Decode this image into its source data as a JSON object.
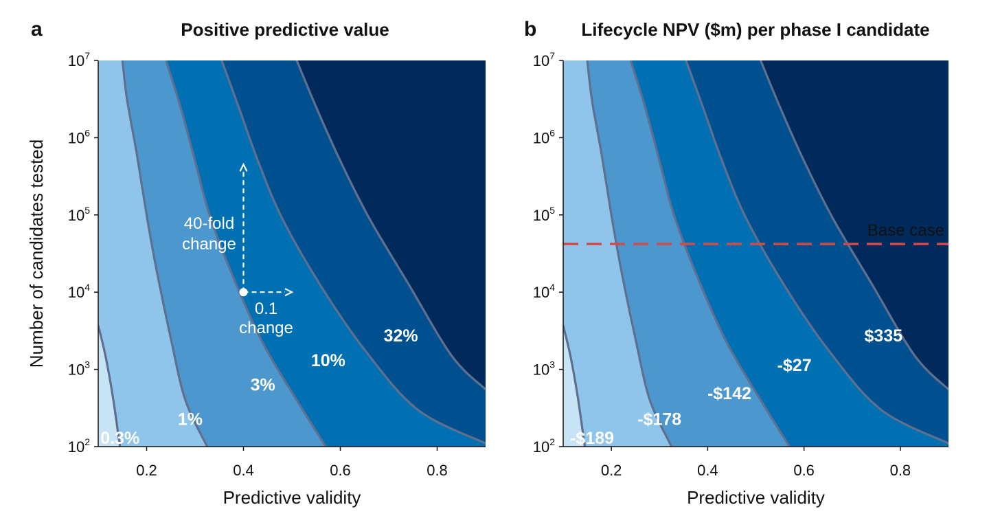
{
  "chart_data": [
    {
      "type": "contour",
      "panel": "a",
      "title": "Positive predictive value",
      "xlabel": "Predictive validity",
      "ylabel": "Number of candidates tested",
      "xlim": [
        0.1,
        0.9
      ],
      "ylim": [
        100,
        10000000
      ],
      "yscale": "log",
      "xticks": [
        {
          "value": 0.2,
          "label": "0.2"
        },
        {
          "value": 0.4,
          "label": "0.4"
        },
        {
          "value": 0.6,
          "label": "0.6"
        },
        {
          "value": 0.8,
          "label": "0.8"
        }
      ],
      "yticks": [
        {
          "value": 100,
          "base": "10",
          "exp": "2"
        },
        {
          "value": 1000,
          "base": "10",
          "exp": "3"
        },
        {
          "value": 10000,
          "base": "10",
          "exp": "4"
        },
        {
          "value": 100000,
          "base": "10",
          "exp": "5"
        },
        {
          "value": 1000000,
          "base": "10",
          "exp": "6"
        },
        {
          "value": 10000000,
          "base": "10",
          "exp": "7"
        }
      ],
      "colors": [
        "#c7e4f6",
        "#8fc5ea",
        "#4d97cf",
        "#0070b2",
        "#00508f",
        "#002a5c"
      ],
      "line_color": "#5f6f8f",
      "contours": [
        {
          "points": [
            [
              0.1,
              3700
            ],
            [
              0.115,
              1500
            ],
            [
              0.13,
              450
            ],
            [
              0.145,
              100
            ]
          ]
        },
        {
          "points": [
            [
              0.15,
              10000000
            ],
            [
              0.16,
              3000000
            ],
            [
              0.18,
              600000
            ],
            [
              0.2,
              100000
            ],
            [
              0.22,
              20000
            ],
            [
              0.25,
              2500
            ],
            [
              0.28,
              400
            ],
            [
              0.325,
              100
            ]
          ]
        },
        {
          "points": [
            [
              0.24,
              10000000
            ],
            [
              0.27,
              2500000
            ],
            [
              0.3,
              500000
            ],
            [
              0.33,
              100000
            ],
            [
              0.38,
              15000
            ],
            [
              0.44,
              2200
            ],
            [
              0.51,
              400
            ],
            [
              0.57,
              100
            ]
          ]
        },
        {
          "points": [
            [
              0.355,
              10000000
            ],
            [
              0.39,
              2500000
            ],
            [
              0.43,
              500000
            ],
            [
              0.48,
              90000
            ],
            [
              0.56,
              12000
            ],
            [
              0.65,
              1800
            ],
            [
              0.76,
              300
            ],
            [
              0.9,
              110
            ]
          ]
        },
        {
          "points": [
            [
              0.51,
              10000000
            ],
            [
              0.55,
              2500000
            ],
            [
              0.6,
              500000
            ],
            [
              0.66,
              90000
            ],
            [
              0.74,
              13000
            ],
            [
              0.83,
              1500
            ],
            [
              0.9,
              550
            ]
          ]
        }
      ],
      "labels": [
        {
          "text": "0.3%",
          "x": 0.145,
          "y": 108
        },
        {
          "text": "1%",
          "x": 0.29,
          "y": 190
        },
        {
          "text": "3%",
          "x": 0.44,
          "y": 530
        },
        {
          "text": "10%",
          "x": 0.575,
          "y": 1100
        },
        {
          "text": "32%",
          "x": 0.725,
          "y": 2300
        }
      ],
      "annotation": {
        "origin": [
          0.4,
          10000
        ],
        "arrow_up_to": 450000,
        "arrow_right_to": 0.5,
        "vertical_text": [
          "40-fold",
          "change"
        ],
        "horizontal_text": [
          "0.1",
          "change"
        ]
      }
    },
    {
      "type": "contour",
      "panel": "b",
      "title": "Lifecycle NPV ($m) per phase I candidate",
      "xlabel": "Predictive validity",
      "ylabel": "",
      "xlim": [
        0.1,
        0.9
      ],
      "ylim": [
        100,
        10000000
      ],
      "yscale": "log",
      "xticks": [
        {
          "value": 0.2,
          "label": "0.2"
        },
        {
          "value": 0.4,
          "label": "0.4"
        },
        {
          "value": 0.6,
          "label": "0.6"
        },
        {
          "value": 0.8,
          "label": "0.8"
        }
      ],
      "yticks": [
        {
          "value": 100,
          "base": "10",
          "exp": "2"
        },
        {
          "value": 1000,
          "base": "10",
          "exp": "3"
        },
        {
          "value": 10000,
          "base": "10",
          "exp": "4"
        },
        {
          "value": 100000,
          "base": "10",
          "exp": "5"
        },
        {
          "value": 1000000,
          "base": "10",
          "exp": "6"
        },
        {
          "value": 10000000,
          "base": "10",
          "exp": "7"
        }
      ],
      "colors": [
        "#c7e4f6",
        "#8fc5ea",
        "#4d97cf",
        "#0070b2",
        "#00508f",
        "#002a5c"
      ],
      "line_color": "#5f6f8f",
      "contours": [
        {
          "points": [
            [
              0.1,
              3700
            ],
            [
              0.115,
              1500
            ],
            [
              0.13,
              450
            ],
            [
              0.145,
              100
            ]
          ]
        },
        {
          "points": [
            [
              0.15,
              10000000
            ],
            [
              0.16,
              3000000
            ],
            [
              0.18,
              600000
            ],
            [
              0.2,
              100000
            ],
            [
              0.22,
              20000
            ],
            [
              0.25,
              2500
            ],
            [
              0.28,
              400
            ],
            [
              0.325,
              100
            ]
          ]
        },
        {
          "points": [
            [
              0.24,
              10000000
            ],
            [
              0.27,
              2500000
            ],
            [
              0.3,
              500000
            ],
            [
              0.33,
              100000
            ],
            [
              0.38,
              15000
            ],
            [
              0.44,
              2200
            ],
            [
              0.51,
              400
            ],
            [
              0.57,
              100
            ]
          ]
        },
        {
          "points": [
            [
              0.355,
              10000000
            ],
            [
              0.39,
              2500000
            ],
            [
              0.43,
              500000
            ],
            [
              0.48,
              90000
            ],
            [
              0.56,
              12000
            ],
            [
              0.65,
              1800
            ],
            [
              0.76,
              300
            ],
            [
              0.9,
              110
            ]
          ]
        },
        {
          "points": [
            [
              0.51,
              10000000
            ],
            [
              0.55,
              2500000
            ],
            [
              0.6,
              500000
            ],
            [
              0.66,
              90000
            ],
            [
              0.74,
              13000
            ],
            [
              0.83,
              1500
            ],
            [
              0.9,
              550
            ]
          ]
        }
      ],
      "labels": [
        {
          "text": "-$189",
          "x": 0.16,
          "y": 108
        },
        {
          "text": "-$178",
          "x": 0.3,
          "y": 190
        },
        {
          "text": "-$142",
          "x": 0.445,
          "y": 410
        },
        {
          "text": "-$27",
          "x": 0.58,
          "y": 950
        },
        {
          "text": "$335",
          "x": 0.765,
          "y": 2300
        }
      ],
      "baseline": {
        "value": 42000,
        "label": "Base case",
        "color": "#d04b4b"
      }
    }
  ]
}
